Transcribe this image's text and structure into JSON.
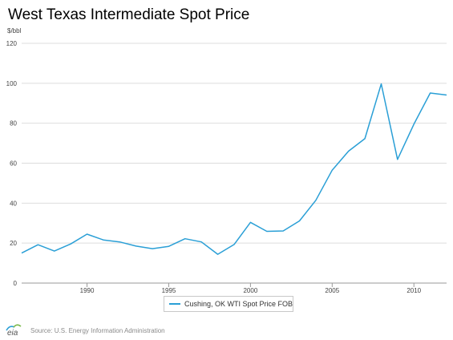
{
  "chart_data": {
    "type": "line",
    "title": "West Texas Intermediate Spot Price",
    "ylabel": "$/bbl",
    "xlabel": "",
    "ylim": [
      0,
      120
    ],
    "xlim": [
      1986,
      2012
    ],
    "yticks": [
      0,
      20,
      40,
      60,
      80,
      100,
      120
    ],
    "xticks": [
      1990,
      1995,
      2000,
      2005,
      2010
    ],
    "grid": true,
    "legend_position": "bottom",
    "x": [
      1986,
      1987,
      1988,
      1989,
      1990,
      1991,
      1992,
      1993,
      1994,
      1995,
      1996,
      1997,
      1998,
      1999,
      2000,
      2001,
      2002,
      2003,
      2004,
      2005,
      2006,
      2007,
      2008,
      2009,
      2010,
      2011,
      2012
    ],
    "series": [
      {
        "name": "Cushing, OK WTI Spot Price FOB",
        "color": "#2a9fd6",
        "values": [
          15.0,
          19.2,
          16.0,
          19.6,
          24.5,
          21.6,
          20.6,
          18.5,
          17.2,
          18.4,
          22.2,
          20.6,
          14.4,
          19.3,
          30.4,
          25.9,
          26.1,
          31.1,
          41.4,
          56.5,
          66.0,
          72.3,
          99.7,
          61.9,
          79.5,
          95.1,
          94.1
        ]
      }
    ]
  },
  "footer": {
    "logo_text": "eia",
    "source": "Source: U.S. Energy Information Administration"
  }
}
